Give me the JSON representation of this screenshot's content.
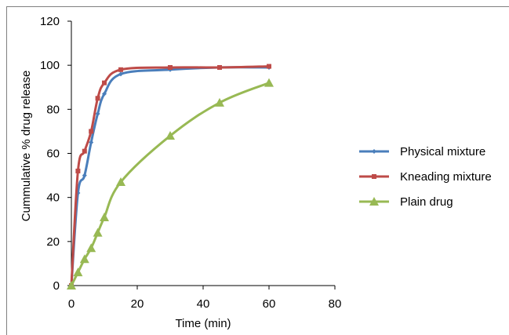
{
  "chart_data": {
    "type": "line",
    "title": "",
    "xlabel": "Time (min)",
    "ylabel": "Cummulative % drug release",
    "xlim": [
      0,
      80
    ],
    "ylim": [
      0,
      120
    ],
    "xticks": [
      "0",
      "20",
      "40",
      "60",
      "80"
    ],
    "yticks": [
      "0",
      "20",
      "40",
      "60",
      "80",
      "100",
      "120"
    ],
    "grid": false,
    "legend_position": "right",
    "series": [
      {
        "name": "Physical mixture",
        "color": "#4a7ebb",
        "marker": "diamond",
        "x": [
          0,
          2,
          4,
          6,
          8,
          10,
          15,
          30,
          45,
          60
        ],
        "y": [
          0,
          42,
          50,
          65,
          78,
          87,
          96,
          98,
          99,
          99
        ]
      },
      {
        "name": "Kneading mixture",
        "color": "#be4b48",
        "marker": "square",
        "x": [
          0,
          2,
          4,
          6,
          8,
          10,
          15,
          30,
          45,
          60
        ],
        "y": [
          0,
          52,
          61,
          70,
          85,
          92,
          98,
          99,
          99,
          99.5
        ]
      },
      {
        "name": "Plain drug",
        "color": "#98b954",
        "marker": "triangle",
        "x": [
          0,
          2,
          4,
          6,
          8,
          10,
          15,
          30,
          45,
          60
        ],
        "y": [
          0,
          6,
          12,
          17,
          24,
          31,
          47,
          68,
          83,
          92
        ]
      }
    ]
  }
}
